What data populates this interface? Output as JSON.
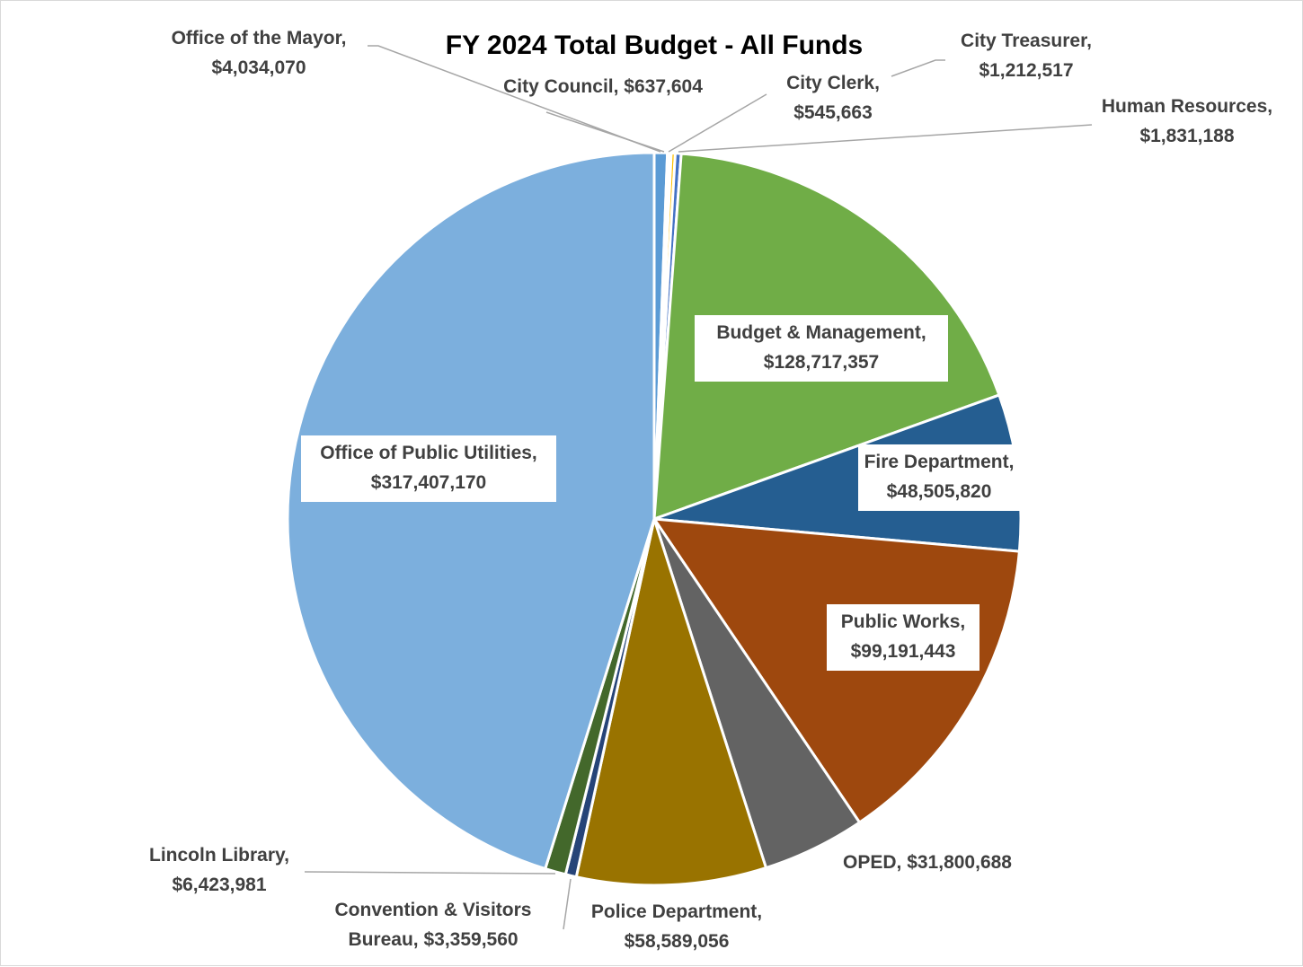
{
  "chart_data": {
    "type": "pie",
    "title": "FY 2024 Total Budget - All Funds",
    "slices": [
      {
        "name": "Office of the Mayor",
        "value": 4034070,
        "value_label": "$4,034,070",
        "color": "#5b9bd5"
      },
      {
        "name": "City Council",
        "value": 637604,
        "value_label": "$637,604",
        "color": "#ed7d31"
      },
      {
        "name": "City Clerk",
        "value": 545663,
        "value_label": "$545,663",
        "color": "#a5a5a5"
      },
      {
        "name": "City Treasurer",
        "value": 1212517,
        "value_label": "$1,212,517",
        "color": "#ffc000"
      },
      {
        "name": "Human Resources",
        "value": 1831188,
        "value_label": "$1,831,188",
        "color": "#4472c4"
      },
      {
        "name": "Budget & Management",
        "value": 128717357,
        "value_label": "$128,717,357",
        "color": "#70ad47"
      },
      {
        "name": "Fire Department",
        "value": 48505820,
        "value_label": "$48,505,820",
        "color": "#255e91"
      },
      {
        "name": "Public Works",
        "value": 99191443,
        "value_label": "$99,191,443",
        "color": "#9e480e"
      },
      {
        "name": "OPED",
        "value": 31800688,
        "value_label": "$31,800,688",
        "color": "#636363"
      },
      {
        "name": "Police Department",
        "value": 58589056,
        "value_label": "$58,589,056",
        "color": "#997300"
      },
      {
        "name": "Convention & Visitors Bureau",
        "value": 3359560,
        "value_label": "$3,359,560",
        "color": "#264478"
      },
      {
        "name": "Lincoln Library",
        "value": 6423981,
        "value_label": "$6,423,981",
        "color": "#43682b"
      },
      {
        "name": "Office of Public Utilities",
        "value": 317407170,
        "value_label": "$317,407,170",
        "color": "#7cafdd"
      }
    ],
    "labels": [
      {
        "lines": [
          "Office of the Mayor,",
          "$4,034,070"
        ]
      },
      {
        "lines": [
          "City Council, $637,604"
        ]
      },
      {
        "lines": [
          "City Clerk,",
          "$545,663"
        ]
      },
      {
        "lines": [
          "City Treasurer,",
          "$1,212,517"
        ]
      },
      {
        "lines": [
          "Human Resources,",
          "$1,831,188"
        ]
      },
      {
        "lines": [
          "Budget & Management,",
          "$128,717,357"
        ]
      },
      {
        "lines": [
          "Fire Department,",
          "$48,505,820"
        ]
      },
      {
        "lines": [
          "Public Works,",
          "$99,191,443"
        ]
      },
      {
        "lines": [
          "OPED, $31,800,688"
        ]
      },
      {
        "lines": [
          "Police Department,",
          "$58,589,056"
        ]
      },
      {
        "lines": [
          "Convention & Visitors",
          "Bureau, $3,359,560"
        ]
      },
      {
        "lines": [
          "Lincoln Library,",
          "$6,423,981"
        ]
      },
      {
        "lines": [
          "Office of Public Utilities,",
          "$317,407,170"
        ]
      }
    ]
  }
}
